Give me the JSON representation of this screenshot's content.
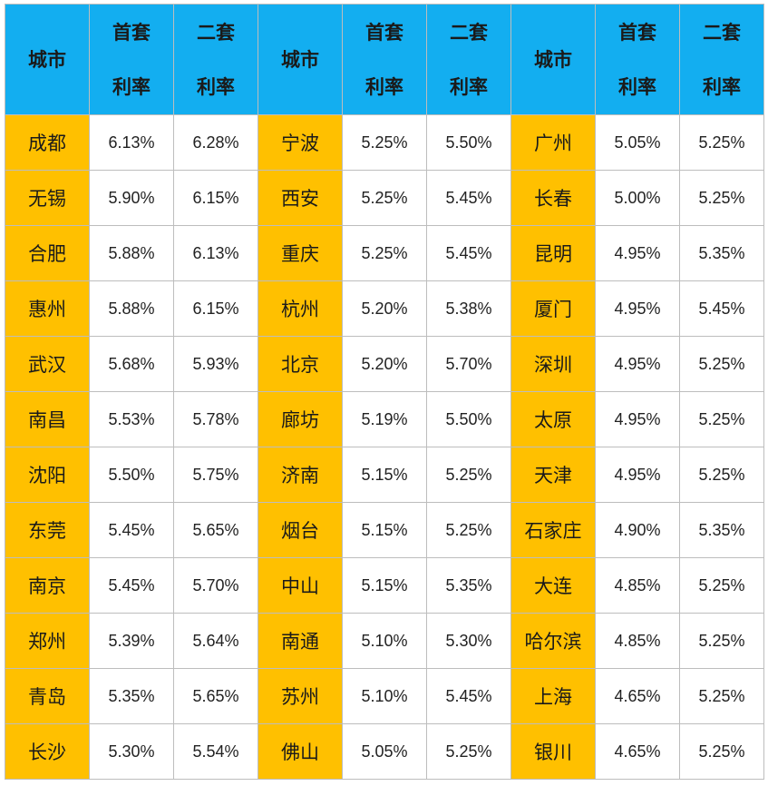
{
  "headers": {
    "city": "城市",
    "first_line1": "首套",
    "first_line2": "利率",
    "second_line1": "二套",
    "second_line2": "利率"
  },
  "groups": [
    {
      "rows": [
        {
          "city": "成都",
          "first": "6.13%",
          "second": "6.28%"
        },
        {
          "city": "无锡",
          "first": "5.90%",
          "second": "6.15%"
        },
        {
          "city": "合肥",
          "first": "5.88%",
          "second": "6.13%"
        },
        {
          "city": "惠州",
          "first": "5.88%",
          "second": "6.15%"
        },
        {
          "city": "武汉",
          "first": "5.68%",
          "second": "5.93%"
        },
        {
          "city": "南昌",
          "first": "5.53%",
          "second": "5.78%"
        },
        {
          "city": "沈阳",
          "first": "5.50%",
          "second": "5.75%"
        },
        {
          "city": "东莞",
          "first": "5.45%",
          "second": "5.65%"
        },
        {
          "city": "南京",
          "first": "5.45%",
          "second": "5.70%"
        },
        {
          "city": "郑州",
          "first": "5.39%",
          "second": "5.64%"
        },
        {
          "city": "青岛",
          "first": "5.35%",
          "second": "5.65%"
        },
        {
          "city": "长沙",
          "first": "5.30%",
          "second": "5.54%"
        }
      ]
    },
    {
      "rows": [
        {
          "city": "宁波",
          "first": "5.25%",
          "second": "5.50%"
        },
        {
          "city": "西安",
          "first": "5.25%",
          "second": "5.45%"
        },
        {
          "city": "重庆",
          "first": "5.25%",
          "second": "5.45%"
        },
        {
          "city": "杭州",
          "first": "5.20%",
          "second": "5.38%"
        },
        {
          "city": "北京",
          "first": "5.20%",
          "second": "5.70%"
        },
        {
          "city": "廊坊",
          "first": "5.19%",
          "second": "5.50%"
        },
        {
          "city": "济南",
          "first": "5.15%",
          "second": "5.25%"
        },
        {
          "city": "烟台",
          "first": "5.15%",
          "second": "5.25%"
        },
        {
          "city": "中山",
          "first": "5.15%",
          "second": "5.35%"
        },
        {
          "city": "南通",
          "first": "5.10%",
          "second": "5.30%"
        },
        {
          "city": "苏州",
          "first": "5.10%",
          "second": "5.45%"
        },
        {
          "city": "佛山",
          "first": "5.05%",
          "second": "5.25%"
        }
      ]
    },
    {
      "rows": [
        {
          "city": "广州",
          "first": "5.05%",
          "second": "5.25%"
        },
        {
          "city": "长春",
          "first": "5.00%",
          "second": "5.25%"
        },
        {
          "city": "昆明",
          "first": "4.95%",
          "second": "5.35%"
        },
        {
          "city": "厦门",
          "first": "4.95%",
          "second": "5.45%"
        },
        {
          "city": "深圳",
          "first": "4.95%",
          "second": "5.25%"
        },
        {
          "city": "太原",
          "first": "4.95%",
          "second": "5.25%"
        },
        {
          "city": "天津",
          "first": "4.95%",
          "second": "5.25%"
        },
        {
          "city": "石家庄",
          "first": "4.90%",
          "second": "5.35%"
        },
        {
          "city": "大连",
          "first": "4.85%",
          "second": "5.25%"
        },
        {
          "city": "哈尔滨",
          "first": "4.85%",
          "second": "5.25%"
        },
        {
          "city": "上海",
          "first": "4.65%",
          "second": "5.25%"
        },
        {
          "city": "银川",
          "first": "4.65%",
          "second": "5.25%"
        }
      ]
    }
  ],
  "colors": {
    "header_bg": "#13aef0",
    "city_bg": "#ffc000",
    "cell_bg": "#ffffff",
    "border": "#bdbdbd"
  }
}
